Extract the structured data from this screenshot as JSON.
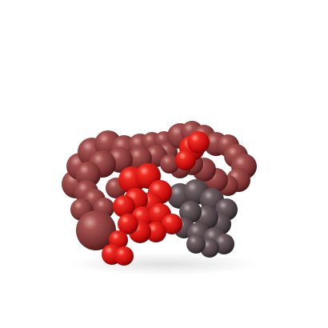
{
  "scene": {
    "subject": "molecular-surface-render",
    "background_color": "#ffffff",
    "atom_colors": {
      "dark_red": "#8a3a3a",
      "bright_red": "#e01515",
      "gray": "#5a4a4e",
      "dark_red_shadow": "#4a1414",
      "bright_red_shadow": "#6e0303",
      "gray_shadow": "#262022"
    },
    "groups": [
      "dark-red-domain",
      "bright-red-domain",
      "gray-domain"
    ]
  }
}
